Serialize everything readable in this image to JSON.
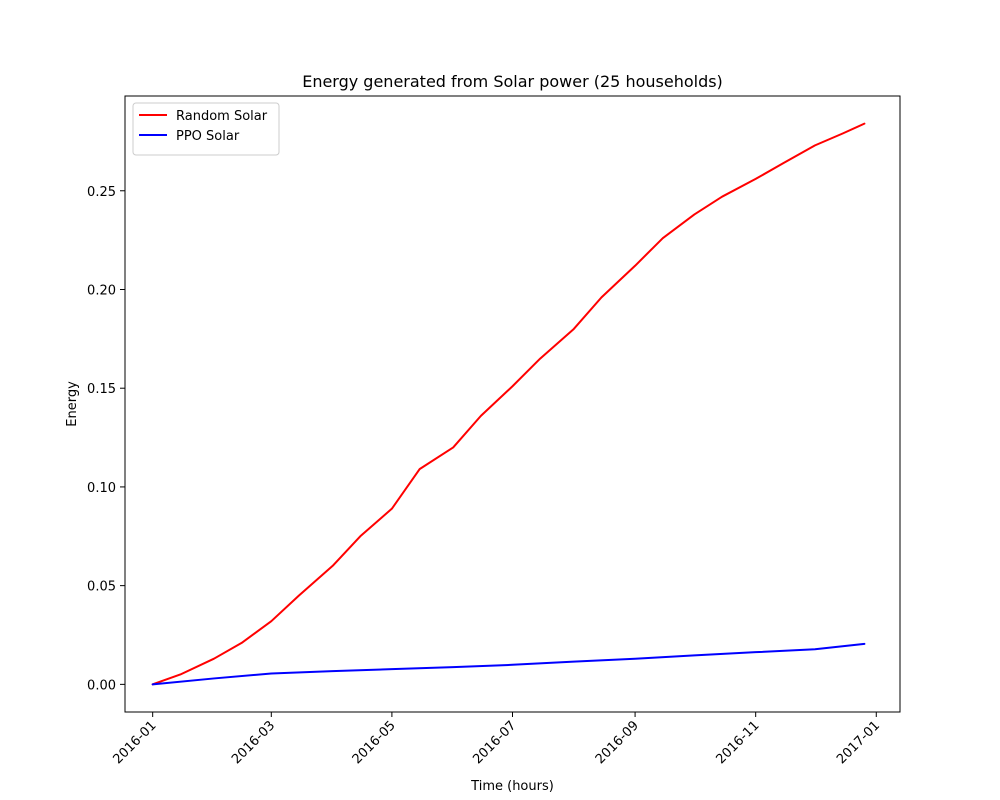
{
  "chart_data": {
    "type": "line",
    "title": "Energy generated from Solar power (25 households)",
    "xlabel": "Time (hours)",
    "ylabel": "Energy",
    "x_type": "date",
    "xlim": [
      "2015-12-18",
      "2017-01-13"
    ],
    "ylim": [
      -0.014,
      0.298
    ],
    "x_ticks": [
      "2016-01",
      "2016-03",
      "2016-05",
      "2016-07",
      "2016-09",
      "2016-11",
      "2017-01"
    ],
    "y_ticks": [
      "0.00",
      "0.05",
      "0.10",
      "0.15",
      "0.20",
      "0.25"
    ],
    "grid": false,
    "legend_position": "top-left",
    "series": [
      {
        "name": "Random Solar",
        "color": "#ff0000",
        "x": [
          "2016-01-01",
          "2016-01-15",
          "2016-02-01",
          "2016-02-15",
          "2016-03-01",
          "2016-03-15",
          "2016-04-01",
          "2016-04-15",
          "2016-05-01",
          "2016-05-15",
          "2016-06-01",
          "2016-06-15",
          "2016-07-01",
          "2016-07-15",
          "2016-08-01",
          "2016-08-15",
          "2016-09-01",
          "2016-09-15",
          "2016-10-01",
          "2016-10-15",
          "2016-11-01",
          "2016-11-15",
          "2016-12-01",
          "2016-12-15",
          "2016-12-26"
        ],
        "y": [
          0.0,
          0.005,
          0.013,
          0.021,
          0.032,
          0.045,
          0.06,
          0.075,
          0.089,
          0.109,
          0.12,
          0.136,
          0.151,
          0.165,
          0.18,
          0.196,
          0.212,
          0.226,
          0.238,
          0.247,
          0.256,
          0.264,
          0.273,
          0.279,
          0.284
        ]
      },
      {
        "name": "PPO Solar",
        "color": "#0000ff",
        "x": [
          "2016-01-01",
          "2016-02-01",
          "2016-03-01",
          "2016-04-01",
          "2016-05-01",
          "2016-06-01",
          "2016-07-01",
          "2016-08-01",
          "2016-09-01",
          "2016-10-01",
          "2016-11-01",
          "2016-12-01",
          "2016-12-26"
        ],
        "y": [
          0.0,
          0.003,
          0.0055,
          0.0067,
          0.0077,
          0.0087,
          0.0099,
          0.0115,
          0.013,
          0.0147,
          0.0163,
          0.0178,
          0.0205
        ]
      }
    ]
  }
}
